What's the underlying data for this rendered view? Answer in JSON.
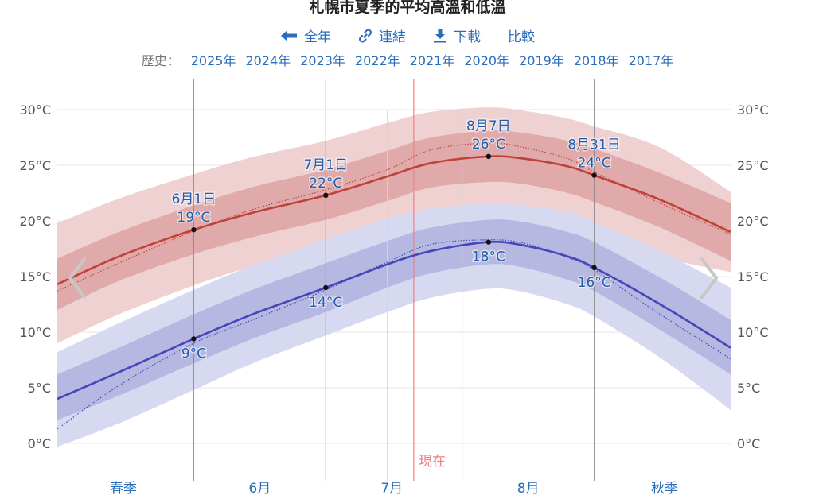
{
  "title": "札幌市夏季的平均高溫和低溫",
  "toolbar": {
    "all_year": {
      "label": "全年",
      "icon": "arrow-left-icon"
    },
    "link": {
      "label": "連結",
      "icon": "link-icon"
    },
    "download": {
      "label": "下載",
      "icon": "download-icon"
    },
    "compare": {
      "label": "比較"
    }
  },
  "history": {
    "label": "歷史：",
    "years": [
      "2025年",
      "2024年",
      "2023年",
      "2022年",
      "2021年",
      "2020年",
      "2019年",
      "2018年",
      "2017年"
    ]
  },
  "colors": {
    "high_line": "#c0413a",
    "low_line": "#4646b9",
    "high_band_outer": "#efd1d1",
    "high_band_inner": "#e1aaaa",
    "low_band_outer": "#d7d9f0",
    "low_band_inner": "#b6b8e2",
    "now_line": "#f08080",
    "annotation_text": "#1f5cab",
    "axis_text": "#555555",
    "month_text": "#2a6ebb"
  },
  "chart_data": {
    "type": "area",
    "x_unit": "day",
    "x_range": [
      "2025-05-01",
      "2025-10-01"
    ],
    "ylim": [
      0,
      30
    ],
    "y_ticks": [
      0,
      5,
      10,
      15,
      20,
      25,
      30
    ],
    "y_tick_labels": [
      "0°C",
      "5°C",
      "10°C",
      "15°C",
      "20°C",
      "25°C",
      "30°C"
    ],
    "grid": true,
    "series": [
      {
        "role": "high",
        "x": [
          "2025-05-01",
          "2025-05-15",
          "2025-06-01",
          "2025-06-15",
          "2025-07-01",
          "2025-07-15",
          "2025-07-25",
          "2025-08-07",
          "2025-08-15",
          "2025-08-25",
          "2025-08-31",
          "2025-09-15",
          "2025-10-01"
        ],
        "values": [
          14.3,
          16.8,
          19.2,
          20.8,
          22.3,
          24.0,
          25.2,
          25.8,
          25.6,
          24.9,
          24.1,
          21.9,
          19.0
        ],
        "band_inner_low": [
          12.0,
          14.6,
          17.0,
          18.6,
          20.1,
          21.8,
          23.0,
          23.5,
          23.3,
          22.5,
          21.7,
          19.4,
          16.4
        ],
        "band_inner_high": [
          16.6,
          19.0,
          21.4,
          23.1,
          24.6,
          26.3,
          27.5,
          28.1,
          27.9,
          27.2,
          26.5,
          24.3,
          21.6
        ],
        "band_outer_low": [
          9.0,
          11.6,
          14.2,
          16.0,
          17.6,
          19.4,
          20.6,
          21.2,
          21.0,
          20.1,
          19.2,
          16.8,
          15.4
        ],
        "band_outer_high": [
          19.8,
          22.0,
          24.2,
          25.8,
          27.2,
          28.8,
          29.8,
          30.2,
          29.9,
          29.2,
          28.5,
          26.6,
          22.6
        ]
      },
      {
        "role": "low",
        "x": [
          "2025-05-01",
          "2025-05-15",
          "2025-06-01",
          "2025-06-15",
          "2025-07-01",
          "2025-07-15",
          "2025-07-25",
          "2025-08-07",
          "2025-08-15",
          "2025-08-25",
          "2025-08-31",
          "2025-09-15",
          "2025-10-01"
        ],
        "values": [
          4.0,
          6.4,
          9.4,
          11.7,
          14.0,
          16.1,
          17.3,
          18.1,
          17.8,
          16.8,
          15.8,
          12.5,
          8.6
        ],
        "band_inner_low": [
          2.1,
          4.3,
          7.2,
          9.5,
          11.8,
          14.0,
          15.3,
          16.1,
          15.8,
          14.7,
          13.7,
          10.2,
          6.2
        ],
        "band_inner_high": [
          6.2,
          8.6,
          11.6,
          13.9,
          16.2,
          18.2,
          19.4,
          20.1,
          19.9,
          19.0,
          18.1,
          14.9,
          11.1
        ],
        "band_outer_low": [
          -0.3,
          1.8,
          4.8,
          7.3,
          9.7,
          11.8,
          13.1,
          13.9,
          13.6,
          12.5,
          11.4,
          7.7,
          3.0
        ],
        "band_outer_high": [
          8.2,
          10.8,
          13.8,
          16.1,
          18.3,
          20.2,
          21.1,
          21.6,
          21.4,
          20.8,
          19.9,
          17.3,
          14.0
        ]
      }
    ],
    "dotted_current_year": {
      "high": {
        "x": [
          "2025-05-01",
          "2025-05-15",
          "2025-06-01",
          "2025-06-15",
          "2025-07-01",
          "2025-07-15",
          "2025-07-25",
          "2025-08-07",
          "2025-08-15",
          "2025-08-25",
          "2025-08-31",
          "2025-09-15",
          "2025-10-01"
        ],
        "values": [
          13.7,
          16.2,
          19.1,
          21.1,
          22.8,
          24.6,
          26.4,
          27.0,
          26.6,
          25.6,
          24.4,
          21.6,
          18.8
        ]
      },
      "low": {
        "x": [
          "2025-05-01",
          "2025-05-15",
          "2025-06-01",
          "2025-06-15",
          "2025-07-01",
          "2025-07-15",
          "2025-07-25",
          "2025-08-07",
          "2025-08-15",
          "2025-08-25",
          "2025-08-31",
          "2025-09-15",
          "2025-10-01"
        ],
        "values": [
          1.3,
          5.2,
          9.0,
          11.2,
          13.8,
          16.3,
          17.9,
          18.3,
          18.0,
          16.7,
          15.6,
          11.6,
          7.6
        ]
      }
    },
    "markers": [
      {
        "x": "2025-06-01",
        "series": "high",
        "value": 19.2,
        "date_label": "6月1日",
        "value_label": "19°C",
        "label_pos": "above"
      },
      {
        "x": "2025-07-01",
        "series": "high",
        "value": 22.3,
        "date_label": "7月1日",
        "value_label": "22°C",
        "label_pos": "above"
      },
      {
        "x": "2025-08-07",
        "series": "high",
        "value": 25.8,
        "date_label": "8月7日",
        "value_label": "26°C",
        "label_pos": "above"
      },
      {
        "x": "2025-08-31",
        "series": "high",
        "value": 24.1,
        "date_label": "8月31日",
        "value_label": "24°C",
        "label_pos": "above"
      },
      {
        "x": "2025-06-01",
        "series": "low",
        "value": 9.4,
        "date_label": "",
        "value_label": "9°C",
        "label_pos": "below"
      },
      {
        "x": "2025-07-01",
        "series": "low",
        "value": 14.0,
        "date_label": "",
        "value_label": "14°C",
        "label_pos": "below"
      },
      {
        "x": "2025-08-07",
        "series": "low",
        "value": 18.1,
        "date_label": "",
        "value_label": "18°C",
        "label_pos": "below"
      },
      {
        "x": "2025-08-31",
        "series": "low",
        "value": 15.8,
        "date_label": "",
        "value_label": "16°C",
        "label_pos": "below"
      }
    ],
    "vertical_lines": [
      "2025-06-01",
      "2025-07-01",
      "2025-08-31"
    ],
    "light_vertical_lines": [
      "2025-07-15",
      "2025-08-01"
    ],
    "now": {
      "x": "2025-07-21",
      "label": "現在"
    },
    "x_labels": [
      {
        "label": "春季",
        "x": "2025-05-16"
      },
      {
        "label": "6月",
        "x": "2025-06-16"
      },
      {
        "label": "7月",
        "x": "2025-07-16"
      },
      {
        "label": "8月",
        "x": "2025-08-16"
      },
      {
        "label": "秋季",
        "x": "2025-09-16"
      }
    ]
  }
}
